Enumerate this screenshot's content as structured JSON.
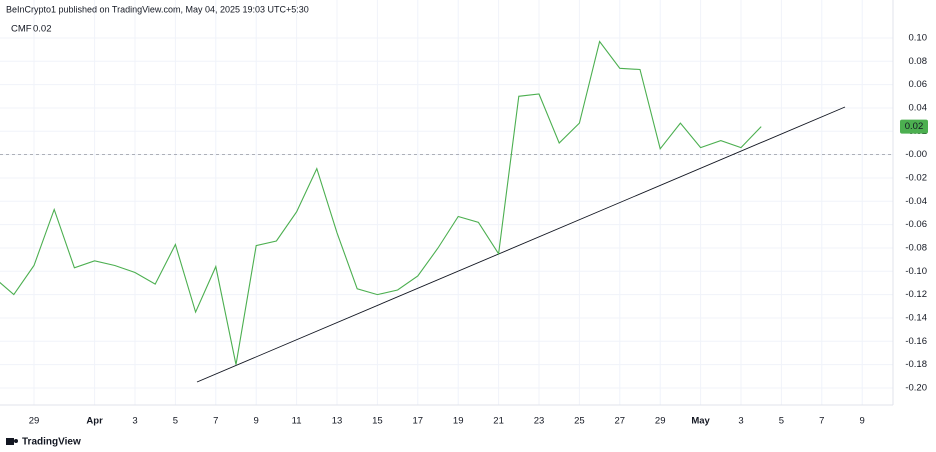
{
  "chart_data": {
    "type": "line",
    "header": "BeInCrypto1 published on TradingView.com, May 04, 2025 19:03 UTC+5:30",
    "brand": "TradingView",
    "categories": [
      null,
      null,
      "29",
      null,
      null,
      "Apr",
      null,
      "3",
      null,
      "5",
      null,
      "7",
      null,
      "9",
      null,
      "11",
      null,
      "13",
      null,
      "15",
      null,
      "17",
      null,
      "19",
      null,
      "21",
      null,
      "23",
      null,
      "25",
      null,
      "27",
      null,
      "29",
      null,
      "May",
      null,
      "3",
      null,
      "5",
      null,
      "7",
      null,
      "9",
      null
    ],
    "series": [
      {
        "name": "CMF",
        "color": "#4caf50",
        "values": [
          -0.105,
          -0.12,
          -0.095,
          -0.047,
          -0.097,
          -0.091,
          -0.095,
          -0.101,
          -0.111,
          -0.077,
          -0.135,
          -0.096,
          -0.18,
          -0.078,
          -0.074,
          -0.049,
          -0.012,
          -0.067,
          -0.115,
          -0.12,
          -0.116,
          -0.104,
          -0.08,
          -0.053,
          -0.058,
          -0.085,
          0.05,
          0.052,
          0.01,
          0.027,
          0.097,
          0.074,
          0.073,
          0.005,
          0.027,
          0.006,
          0.012,
          0.006,
          0.024,
          null,
          null,
          null,
          null,
          null,
          null
        ],
        "value_labels": [
          null,
          null,
          null,
          null,
          null,
          null,
          null,
          null,
          null,
          null,
          null,
          null,
          null,
          null,
          null,
          null,
          null,
          null,
          null,
          null,
          null,
          null,
          null,
          null,
          null,
          null,
          null,
          null,
          null,
          null,
          null,
          null,
          null,
          null,
          null,
          null,
          null,
          null,
          "0.02",
          null,
          null,
          null,
          null,
          null,
          null
        ]
      }
    ],
    "ylim": [
      -0.2146,
      0.1154
    ],
    "yticks": [
      {
        "value": 0.1,
        "label": "0.10"
      },
      {
        "value": 0.08,
        "label": "0.08"
      },
      {
        "value": 0.06,
        "label": "0.06"
      },
      {
        "value": 0.04,
        "label": "0.04"
      },
      {
        "value": 0.02,
        "label": "0.02"
      },
      {
        "value": 0,
        "label": "-0.00"
      },
      {
        "value": -0.02,
        "label": "-0.02"
      },
      {
        "value": -0.04,
        "label": "-0.04"
      },
      {
        "value": -0.06,
        "label": "-0.06"
      },
      {
        "value": -0.08,
        "label": "-0.08"
      },
      {
        "value": -0.1,
        "label": "-0.10"
      },
      {
        "value": -0.12,
        "label": "-0.12"
      },
      {
        "value": -0.14,
        "label": "-0.14"
      },
      {
        "value": -0.16,
        "label": "-0.16"
      },
      {
        "value": -0.18,
        "label": "-0.18"
      },
      {
        "value": -0.2,
        "label": "-0.20"
      }
    ],
    "reference_line": 0,
    "grid": true
  }
}
